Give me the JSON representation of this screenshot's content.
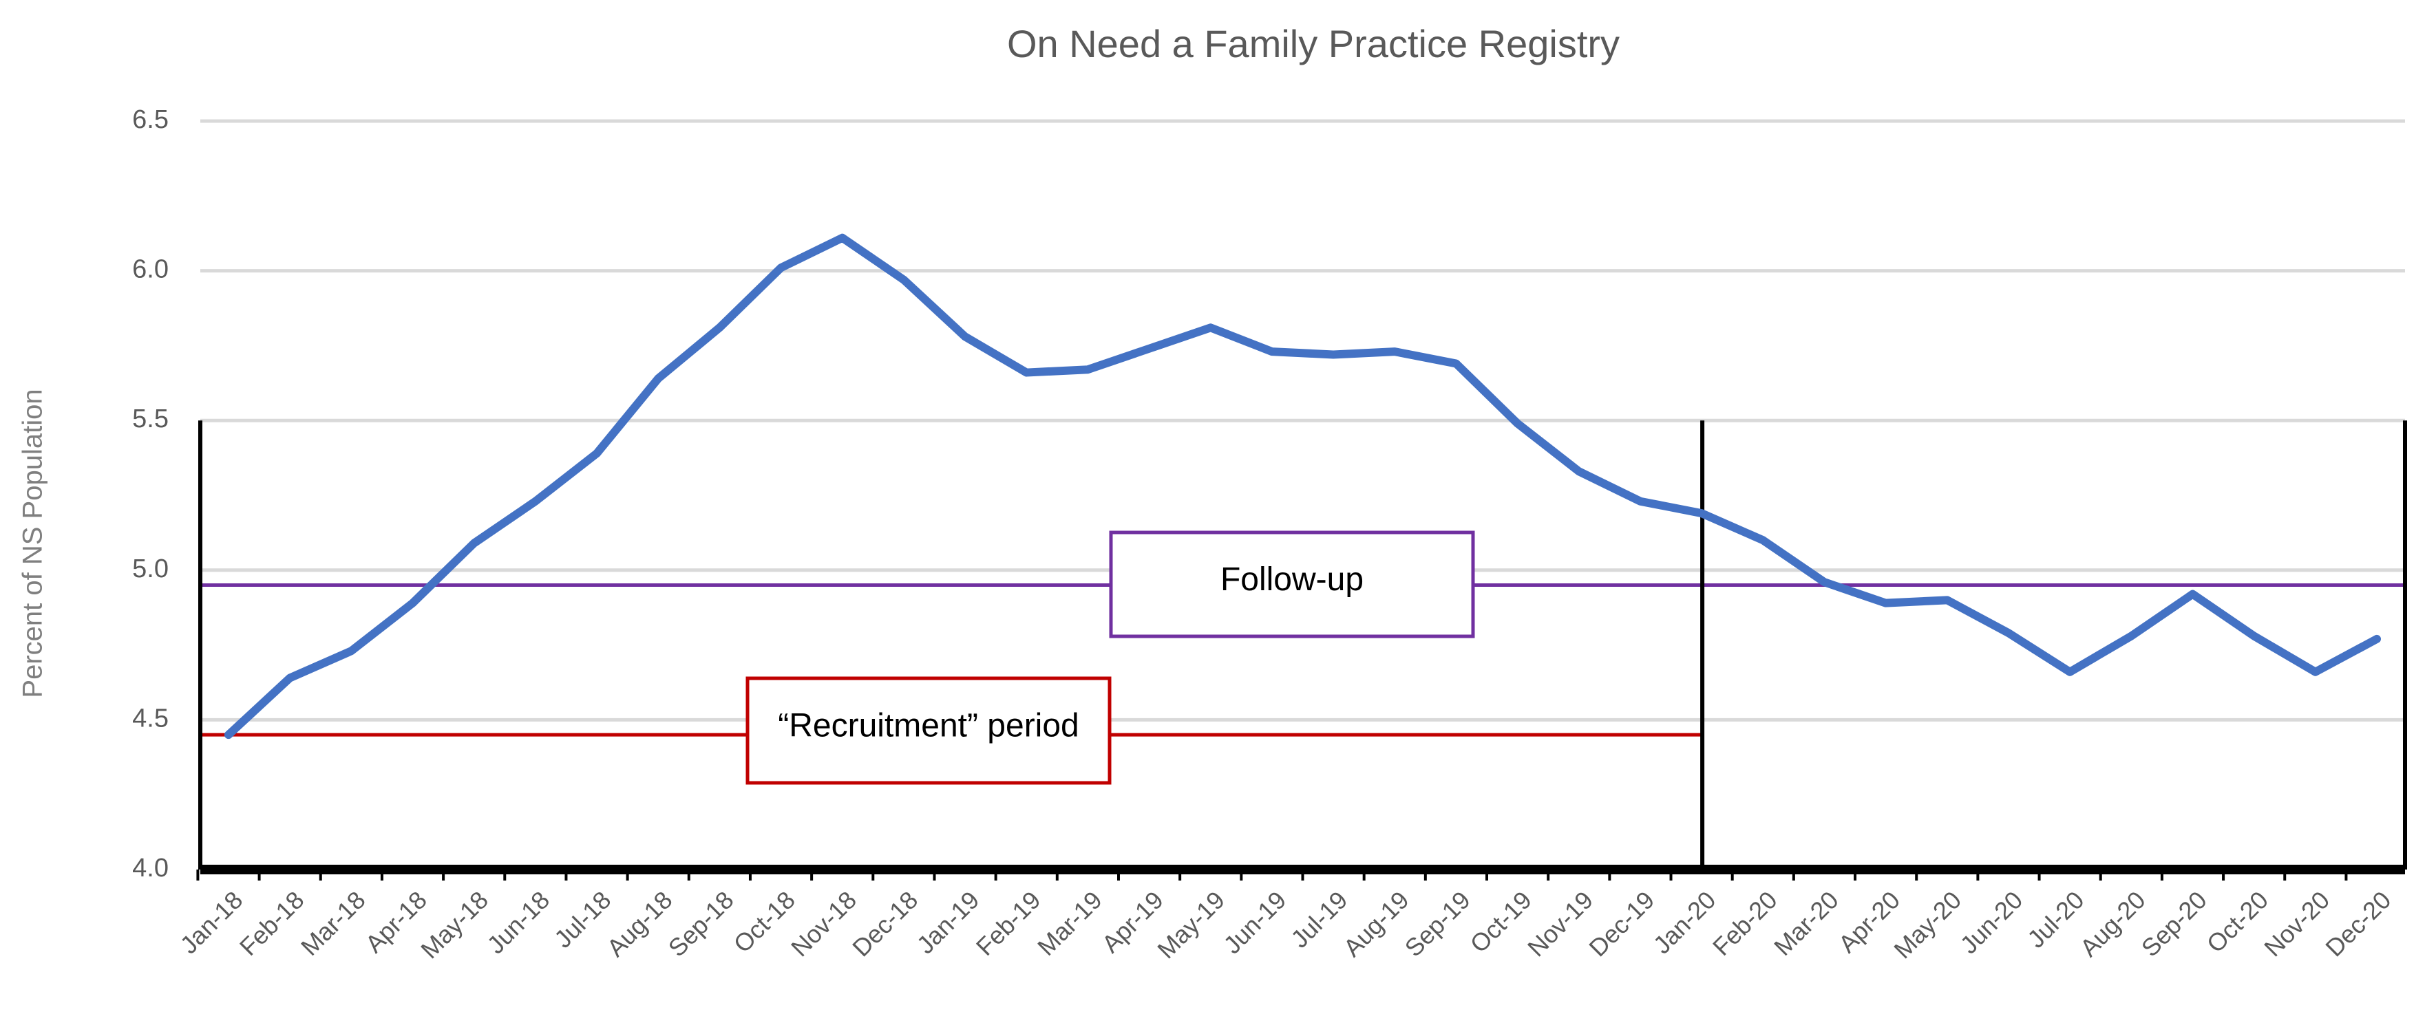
{
  "chart_data": {
    "type": "line",
    "title": "On Need a Family Practice Registry",
    "y_label": "Percent of NS Population",
    "categories": [
      "Jan-18",
      "Feb-18",
      "Mar-18",
      "Apr-18",
      "May-18",
      "Jun-18",
      "Jul-18",
      "Aug-18",
      "Sep-18",
      "Oct-18",
      "Nov-18",
      "Dec-18",
      "Jan-19",
      "Feb-19",
      "Mar-19",
      "Apr-19",
      "May-19",
      "Jun-19",
      "Jul-19",
      "Aug-19",
      "Sep-19",
      "Oct-19",
      "Nov-19",
      "Dec-19",
      "Jan-20",
      "Feb-20",
      "Mar-20",
      "Apr-20",
      "May-20",
      "Jun-20",
      "Jul-20",
      "Aug-20",
      "Sep-20",
      "Oct-20",
      "Nov-20",
      "Dec-20"
    ],
    "series": [
      {
        "color": "#4472c4",
        "values": [
          4.45,
          4.64,
          4.73,
          4.89,
          5.09,
          5.23,
          5.39,
          5.64,
          5.81,
          6.01,
          6.11,
          5.97,
          5.78,
          5.66,
          5.67,
          5.74,
          5.81,
          5.73,
          5.72,
          5.73,
          5.69,
          5.49,
          5.33,
          5.23,
          5.19,
          5.1,
          4.96,
          4.89,
          4.9,
          4.79,
          4.66,
          4.78,
          4.92,
          4.78,
          4.66,
          4.77
        ]
      }
    ],
    "ylim": [
      4.0,
      6.5
    ],
    "yticks": [
      {
        "value": 4.0,
        "label": "4.0"
      },
      {
        "value": 4.5,
        "label": "4.5"
      },
      {
        "value": 5.0,
        "label": "5.0"
      },
      {
        "value": 5.5,
        "label": "5.5"
      },
      {
        "value": 6.0,
        "label": "6.0"
      },
      {
        "value": 6.5,
        "label": "6.5"
      }
    ],
    "grid": true,
    "reference_lines": [
      {
        "label": "Follow-up",
        "value": 4.95,
        "color": "#7030a0"
      },
      {
        "label": "“Recruitment” period",
        "value": 4.45,
        "color": "#c00000"
      }
    ]
  }
}
